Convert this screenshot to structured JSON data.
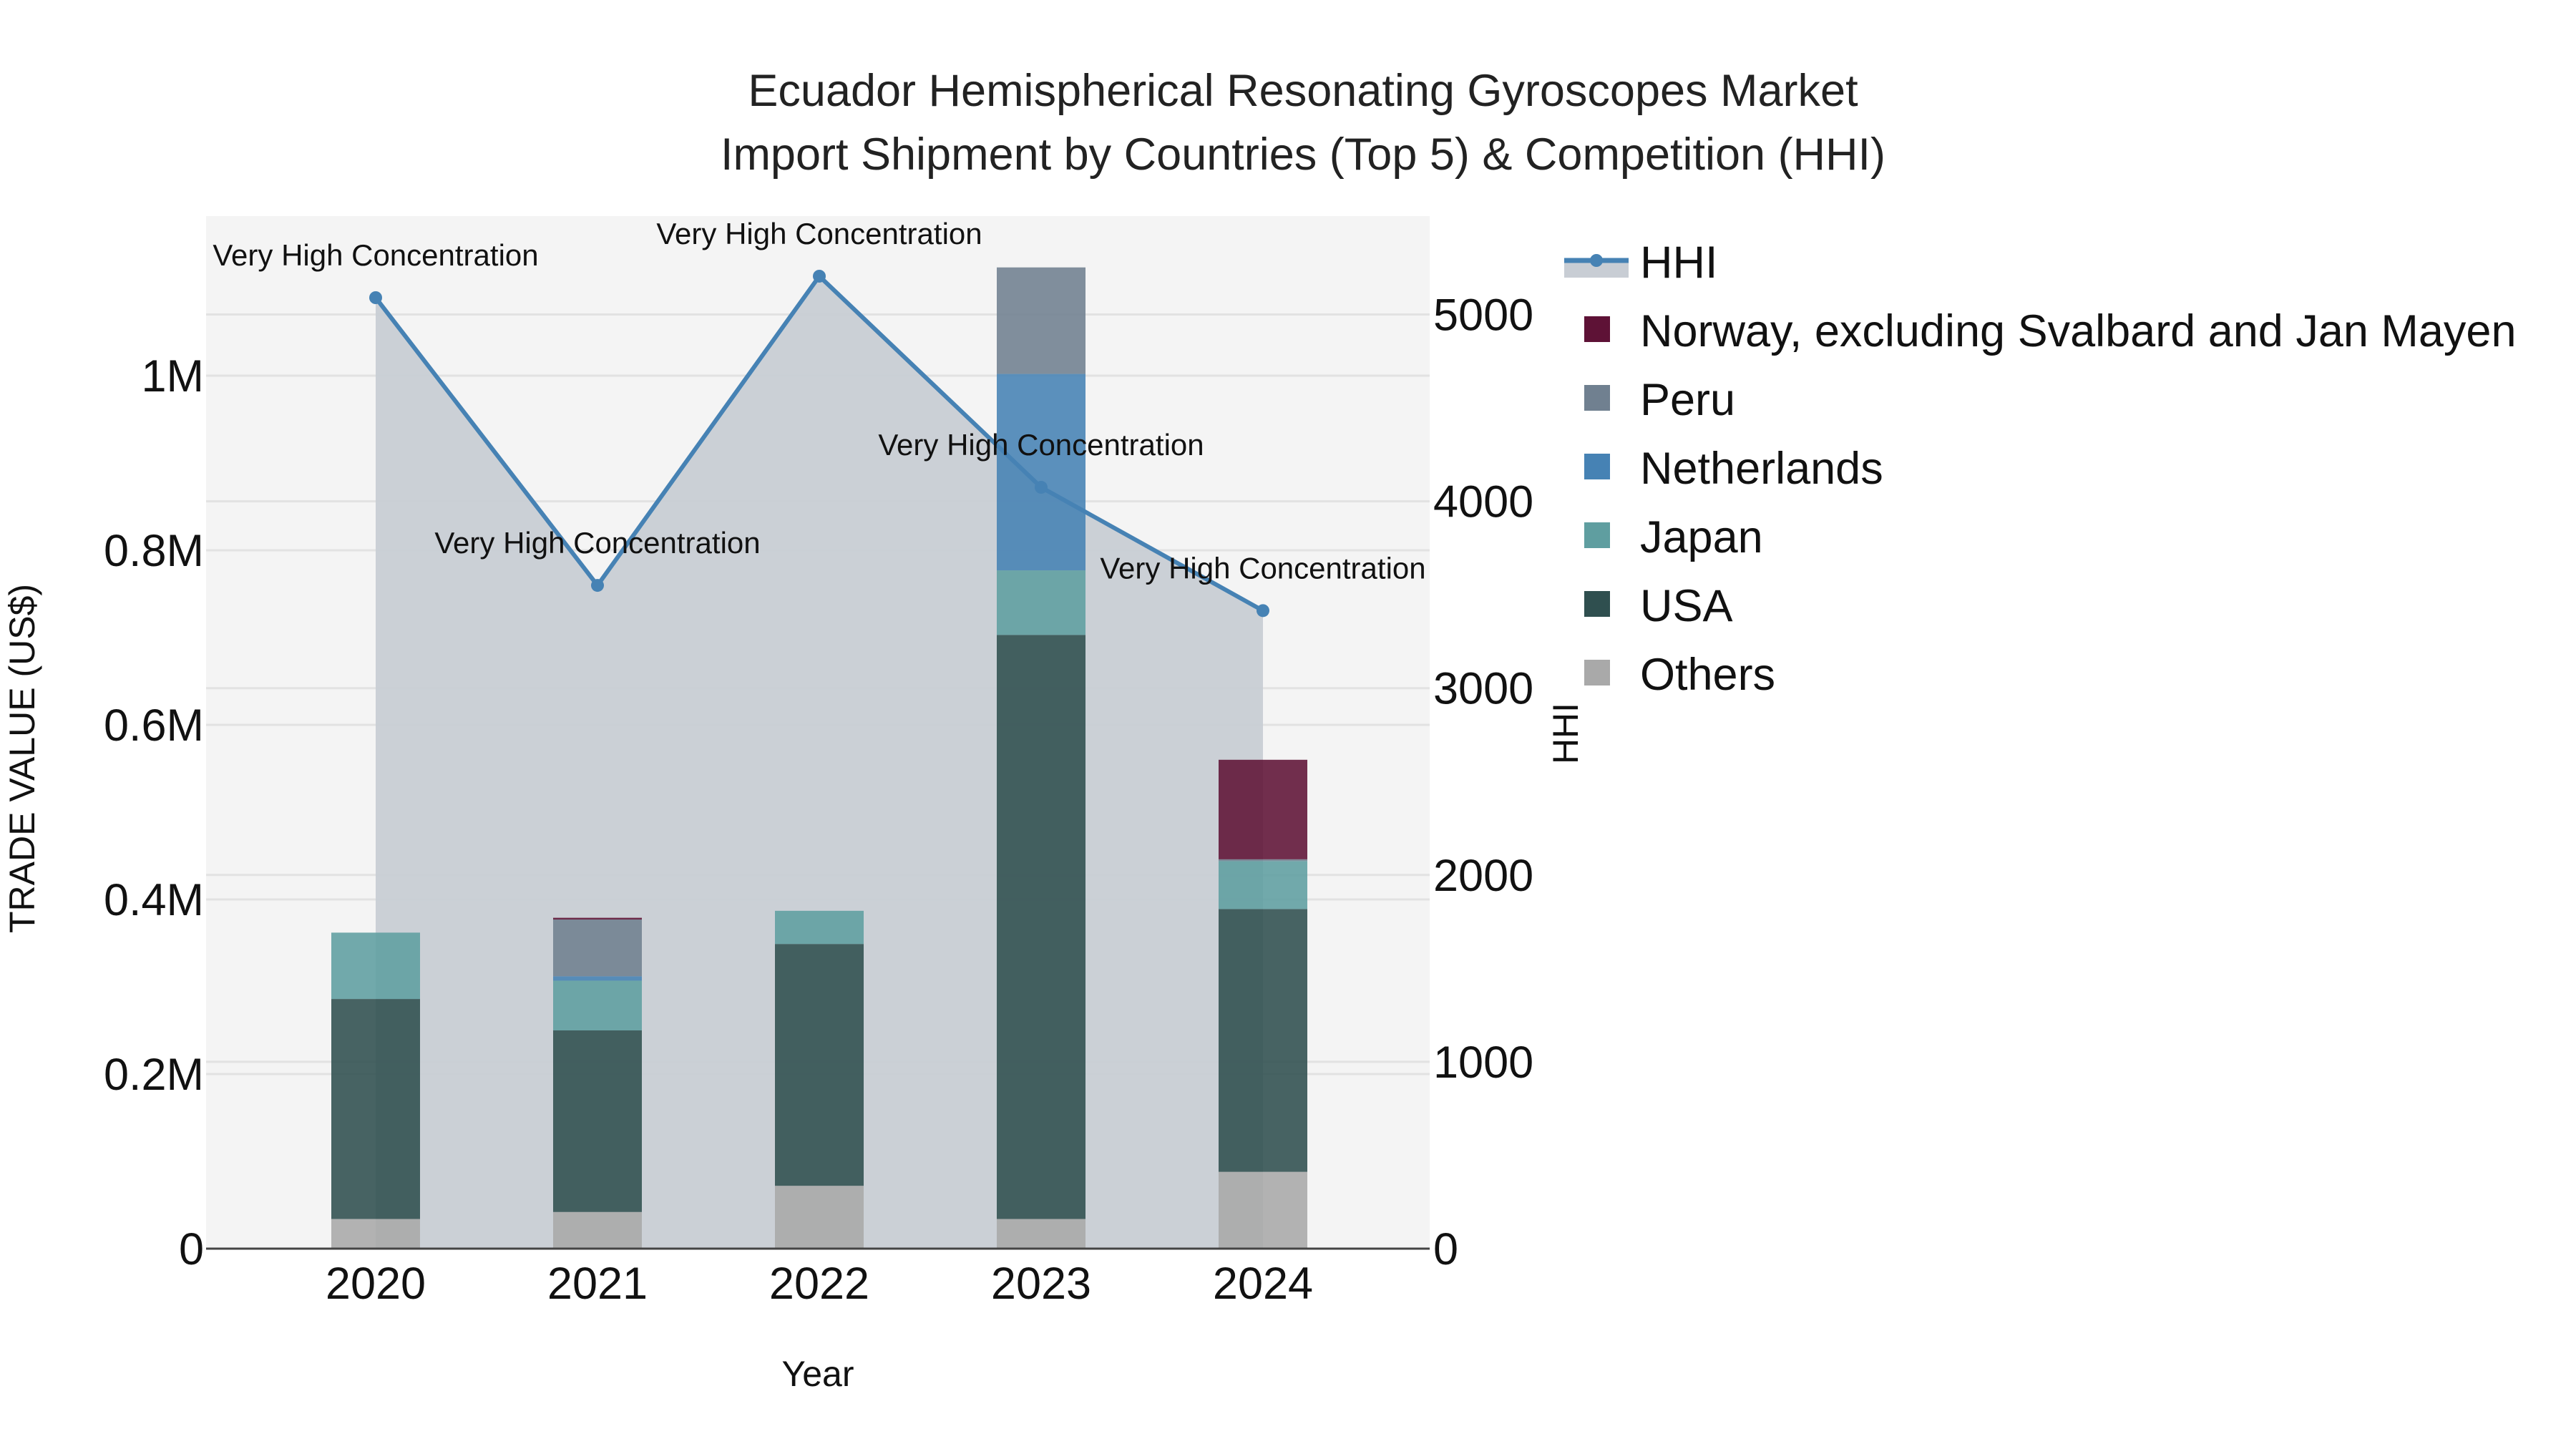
{
  "title": {
    "line1": "Ecuador Hemispherical Resonating Gyroscopes Market",
    "line2": "Import Shipment by Countries (Top 5) & Competition (HHI)"
  },
  "axes": {
    "x_title": "Year",
    "y_left_title": "TRADE VALUE (US$)",
    "y_right_title": "HHI",
    "y_left_ticks": [
      "0",
      "0.2M",
      "0.4M",
      "0.6M",
      "0.8M",
      "1M"
    ],
    "y_right_ticks": [
      "0",
      "1000",
      "2000",
      "3000",
      "4000",
      "5000"
    ],
    "x_ticks": [
      "2020",
      "2021",
      "2022",
      "2023",
      "2024"
    ]
  },
  "legend": [
    {
      "label": "HHI",
      "color": "#4682B4",
      "kind": "line"
    },
    {
      "label": "Norway, excluding Svalbard and Jan Mayen",
      "color": "#5E1236",
      "kind": "box"
    },
    {
      "label": "Peru",
      "color": "#708090",
      "kind": "box"
    },
    {
      "label": "Netherlands",
      "color": "#4682B4",
      "kind": "box"
    },
    {
      "label": "Japan",
      "color": "#5F9EA0",
      "kind": "box"
    },
    {
      "label": "USA",
      "color": "#2F4F4F",
      "kind": "box"
    },
    {
      "label": "Others",
      "color": "#A9A9A9",
      "kind": "box"
    }
  ],
  "colors": {
    "plot_bg": "#F4F4F4",
    "area_fill": "#C8CDD4",
    "hhi_line": "#4682B4",
    "grid": "#E2E2E2"
  },
  "chart_data": {
    "type": "bar",
    "title": "Ecuador Hemispherical Resonating Gyroscopes Market Import Shipment by Countries (Top 5) & Competition (HHI)",
    "xlabel": "Year",
    "ylabel": "TRADE VALUE (US$)",
    "y2label": "HHI",
    "categories": [
      "2020",
      "2021",
      "2022",
      "2023",
      "2024"
    ],
    "ylim": [
      0,
      1180000
    ],
    "y2lim": [
      0,
      5450
    ],
    "stacked": true,
    "legend_position": "right",
    "grid": true,
    "series": [
      {
        "name": "Others",
        "type": "bar",
        "color": "#A9A9A9",
        "values": [
          34000,
          42000,
          72000,
          34000,
          88000
        ]
      },
      {
        "name": "USA",
        "type": "bar",
        "color": "#2F4F4F",
        "values": [
          252000,
          208000,
          277000,
          669000,
          301000
        ]
      },
      {
        "name": "Japan",
        "type": "bar",
        "color": "#5F9EA0",
        "values": [
          76000,
          57000,
          38000,
          74000,
          55000
        ]
      },
      {
        "name": "Netherlands",
        "type": "bar",
        "color": "#4682B4",
        "values": [
          0,
          5000,
          0,
          225000,
          0
        ]
      },
      {
        "name": "Peru",
        "type": "bar",
        "color": "#708090",
        "values": [
          0,
          65000,
          0,
          122000,
          2000
        ]
      },
      {
        "name": "Norway, excluding Svalbard and Jan Mayen",
        "type": "bar",
        "color": "#5E1236",
        "values": [
          0,
          2000,
          0,
          0,
          114000
        ]
      },
      {
        "name": "HHI",
        "type": "line",
        "axis": "right",
        "color": "#4682B4",
        "values": [
          5090,
          3550,
          5205,
          4075,
          3415
        ]
      }
    ],
    "annotations": [
      {
        "x": "2020",
        "text": "Very High Concentration"
      },
      {
        "x": "2021",
        "text": "Very High Concentration"
      },
      {
        "x": "2022",
        "text": "Very High Concentration"
      },
      {
        "x": "2023",
        "text": "Very High Concentration"
      },
      {
        "x": "2024",
        "text": "Very High Concentration"
      }
    ]
  }
}
